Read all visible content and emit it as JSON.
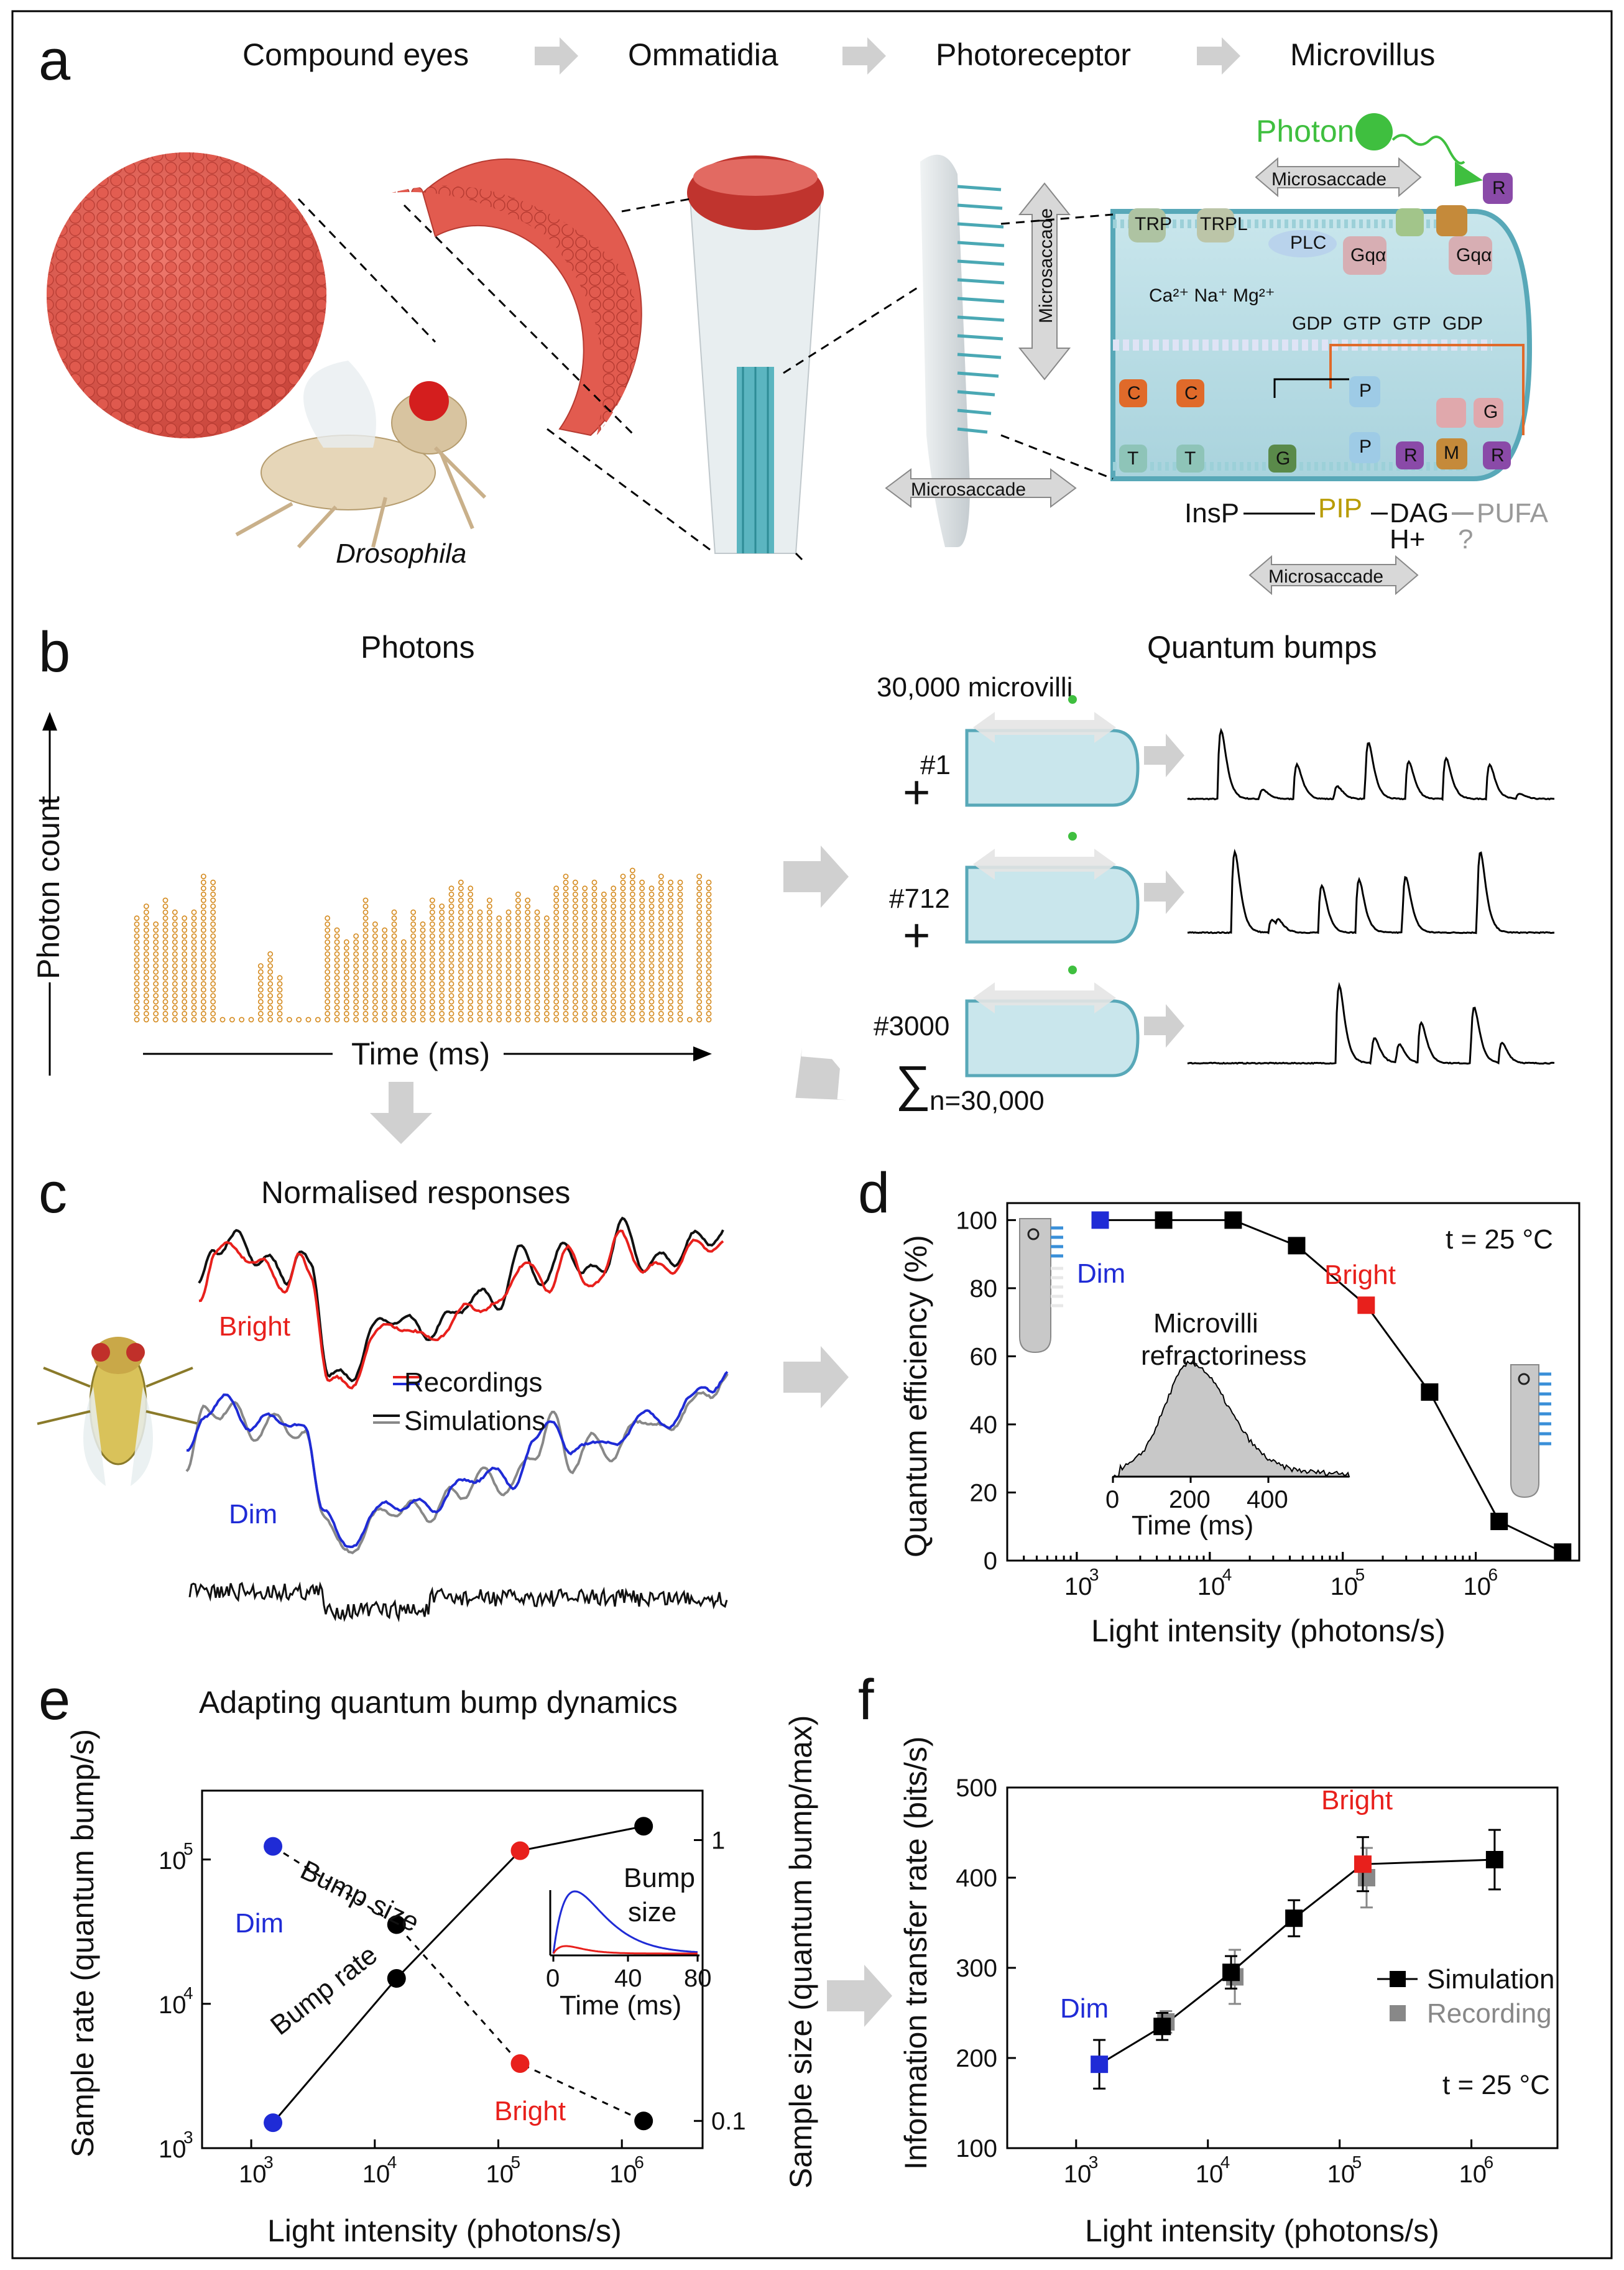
{
  "panel_a": {
    "letter": "a",
    "flow": [
      "Compound eyes",
      "Ommatidia",
      "Photoreceptor",
      "Microvillus"
    ],
    "fly_label": "Drosophila",
    "photon_label": "Photon",
    "microsaccade_labels": [
      "Microsaccade",
      "Microsaccade",
      "Microsaccade",
      "Microsaccade"
    ],
    "cascade_labels": {
      "trp": "TRP",
      "trpl": "TRPL",
      "plc": "PLC",
      "gqa": "Gqα",
      "gdp": "GDP",
      "gtp": "GTP",
      "r": "R",
      "m": "M",
      "c": "C",
      "p": "P",
      "t": "T",
      "g": "G",
      "insp3": "InsP",
      "pip2": "PIP",
      "dag": "DAG",
      "h": "H+",
      "pufa": "PUFA",
      "q": "?",
      "ions": "Ca²⁺  Na⁺  Mg²⁺"
    },
    "colors": {
      "eye": "#e0554a",
      "microvilli": "#5bb5c0",
      "photon": "#3fbf3f",
      "pip2": "#b89b00"
    }
  },
  "panel_b": {
    "letter": "b",
    "photons_title": "Photons",
    "photon_axis_label": "Photon count",
    "time_axis_label": "Time (ms)",
    "bumps_title": "Quantum bumps",
    "microvilli_count": "30,000 microvilli",
    "microvilli_ids": [
      "#1",
      "#712",
      "#3000"
    ],
    "plus": "+",
    "sum_symbol": "∑",
    "sum_subscript": "n=30,000",
    "photon_counts": [
      17,
      19,
      16,
      20,
      18,
      17,
      18,
      24,
      23,
      0,
      0,
      0,
      0,
      9,
      11,
      7,
      0,
      0,
      0,
      0,
      17,
      15,
      13,
      14,
      20,
      16,
      15,
      18,
      13,
      18,
      16,
      20,
      19,
      22,
      23,
      22,
      18,
      20,
      17,
      18,
      21,
      20,
      18,
      17,
      22,
      24,
      23,
      22,
      23,
      21,
      22,
      24,
      25,
      23,
      22,
      24,
      23,
      23,
      0,
      24,
      23
    ],
    "photon_color": "#d4891c"
  },
  "panel_c": {
    "letter": "c",
    "title": "Normalised responses",
    "bright_label": "Bright",
    "dim_label": "Dim",
    "legend_recordings": "Recordings",
    "legend_simulations": "Simulations",
    "colors": {
      "bright": "#e8201c",
      "dim": "#1f2bd6",
      "sim": "#111111",
      "sim_dim": "#888888"
    }
  },
  "panel_d": {
    "letter": "d",
    "temperature": "t = 25 °C",
    "dim_label": "Dim",
    "bright_label": "Bright",
    "inset_title_1": "Microvilli",
    "inset_title_2": "refractoriness",
    "inset_xlabel": "Time (ms)",
    "inset_xticks": [
      "0",
      "200",
      "400"
    ],
    "chart_data": {
      "type": "line",
      "xlabel": "Light intensity (photons/s)",
      "ylabel": "Quantum efficiency (%)",
      "xscale": "log",
      "xlim": [
        300,
        6000000
      ],
      "ylim": [
        0,
        105
      ],
      "xticks": [
        "10",
        "10",
        "10",
        "10"
      ],
      "xtick_exponents": [
        "3",
        "4",
        "5",
        "6"
      ],
      "yticks": [
        "0",
        "20",
        "40",
        "60",
        "80",
        "100"
      ],
      "x": [
        1500,
        4500,
        15000,
        45000,
        150000,
        450000,
        1500000,
        4500000
      ],
      "y": [
        100,
        100,
        100,
        92.5,
        75,
        49.5,
        11.5,
        2.5
      ],
      "highlight": {
        "dim_index": 0,
        "bright_index": 4
      }
    }
  },
  "panel_e": {
    "letter": "e",
    "title": "Adapting quantum bump dynamics",
    "bump_size_label": "Bump size",
    "bump_rate_label": "Bump rate",
    "dim_label": "Dim",
    "bright_label": "Bright",
    "inset_title_1": "Bump",
    "inset_title_2": "size",
    "inset_xlabel": "Time (ms)",
    "inset_xticks": [
      "0",
      "40",
      "80"
    ],
    "chart_data": {
      "type": "line",
      "xlabel": "Light intensity (photons/s)",
      "ylabel": "Sample rate (quantum bump/s)",
      "y2label": "Sample size (quantum bump/max)",
      "xscale": "log",
      "yscale": "log",
      "xticks": [
        "10",
        "10",
        "10",
        "10"
      ],
      "xtick_exponents": [
        "3",
        "4",
        "5",
        "6"
      ],
      "yticks": [
        "10",
        "10",
        "10"
      ],
      "ytick_exponents": [
        "3",
        "4",
        "5"
      ],
      "y2ticks": [
        "0.1",
        "1"
      ],
      "series": [
        {
          "x": [
            1500,
            15000,
            150000,
            1500000
          ],
          "y": [
            1500,
            15000,
            115000,
            170000
          ]
        },
        {
          "x": [
            1500,
            15000,
            150000,
            1500000
          ],
          "y": [
            0.95,
            0.5,
            0.16,
            0.1
          ]
        }
      ]
    }
  },
  "panel_f": {
    "letter": "f",
    "temperature": "t = 25 °C",
    "dim_label": "Dim",
    "bright_label": "Bright",
    "legend_simulation": "Simulation",
    "legend_recording": "Recording",
    "chart_data": {
      "type": "line",
      "xlabel": "Light intensity (photons/s)",
      "ylabel": "Information transfer rate (bits/s)",
      "xscale": "log",
      "xlim": [
        300,
        4500000
      ],
      "ylim": [
        100,
        500
      ],
      "xticks": [
        "10",
        "10",
        "10",
        "10"
      ],
      "xtick_exponents": [
        "3",
        "4",
        "5",
        "6"
      ],
      "yticks": [
        "100",
        "200",
        "300",
        "400",
        "500"
      ],
      "series": [
        {
          "x": [
            1500,
            4500,
            15000,
            45000,
            150000,
            1500000
          ],
          "y": [
            193,
            235,
            295,
            355,
            415,
            420
          ],
          "err": [
            27,
            15,
            18,
            20,
            30,
            33
          ]
        },
        {
          "x": [
            4500,
            15000,
            150000
          ],
          "y": [
            240,
            290,
            400
          ],
          "err": [
            12,
            30,
            33
          ]
        }
      ]
    }
  }
}
